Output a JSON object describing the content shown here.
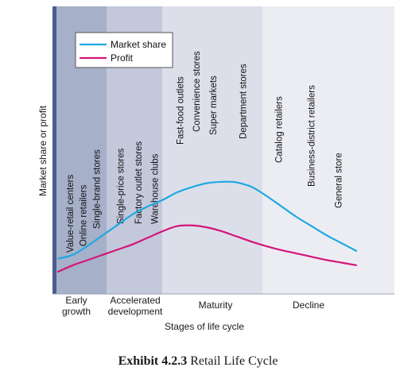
{
  "chart_data": {
    "type": "line",
    "title": "",
    "ylabel": "Market share or profit",
    "xlabel": "Stages of life cycle",
    "stages": [
      {
        "name": "Early growth",
        "lines": [
          "Early",
          "growth"
        ],
        "range": [
          0,
          17
        ],
        "color": "#a7b0c9"
      },
      {
        "name": "Accelerated development",
        "lines": [
          "Accelerated",
          "development"
        ],
        "range": [
          17,
          40
        ],
        "color": "#c3c8db"
      },
      {
        "name": "Maturity",
        "lines": [
          "Maturity"
        ],
        "range": [
          40,
          70
        ],
        "color": "#dcdfea"
      },
      {
        "name": "Decline",
        "lines": [
          "Decline"
        ],
        "range": [
          70,
          100
        ],
        "color": "#ecedf3"
      }
    ],
    "xlim": [
      0,
      100
    ],
    "ylim": [
      0,
      100
    ],
    "series": [
      {
        "name": "Market share",
        "color": "#1fa9e1",
        "x": [
          0,
          5,
          10,
          15,
          20,
          25,
          30,
          35,
          40,
          45,
          50,
          55,
          58,
          60,
          65,
          70,
          75,
          80,
          85,
          90,
          95,
          100
        ],
        "y": [
          10,
          13,
          20,
          28,
          36,
          44,
          50,
          55,
          61,
          65,
          68,
          69,
          69,
          68.5,
          65,
          58,
          50,
          42,
          35,
          28,
          22,
          16
        ]
      },
      {
        "name": "Profit",
        "color": "#d4157a",
        "x": [
          0,
          5,
          10,
          15,
          20,
          25,
          30,
          35,
          40,
          45,
          50,
          55,
          60,
          65,
          70,
          75,
          80,
          85,
          90,
          95,
          100
        ],
        "y": [
          0,
          5,
          9,
          13,
          17,
          21,
          26,
          31,
          35,
          35.5,
          34,
          31,
          27,
          23,
          19.5,
          16.5,
          14,
          11.5,
          9,
          7,
          5
        ]
      }
    ],
    "annotations": [
      {
        "text": "Value-retail centers",
        "x": 5
      },
      {
        "text": "Online retailers",
        "x": 9.5
      },
      {
        "text": "Single-brand stores",
        "x": 14
      },
      {
        "text": "Single-price stores",
        "x": 22
      },
      {
        "text": "Factory outlet stores",
        "x": 28
      },
      {
        "text": "Warehouse clubs",
        "x": 33.5
      },
      {
        "text": "Fast-food outlets",
        "x": 42
      },
      {
        "text": "Convenience stores",
        "x": 47.5
      },
      {
        "text": "Super markets",
        "x": 53
      },
      {
        "text": "Department stores",
        "x": 63
      },
      {
        "text": "Catalog retailers",
        "x": 75
      },
      {
        "text": "Business-district retailers",
        "x": 86
      },
      {
        "text": "General store",
        "x": 95
      }
    ],
    "legend": {
      "placement": "top-left"
    },
    "grid": false
  },
  "caption": {
    "label": "Exhibit 4.2.3",
    "text": " Retail Life Cycle"
  }
}
